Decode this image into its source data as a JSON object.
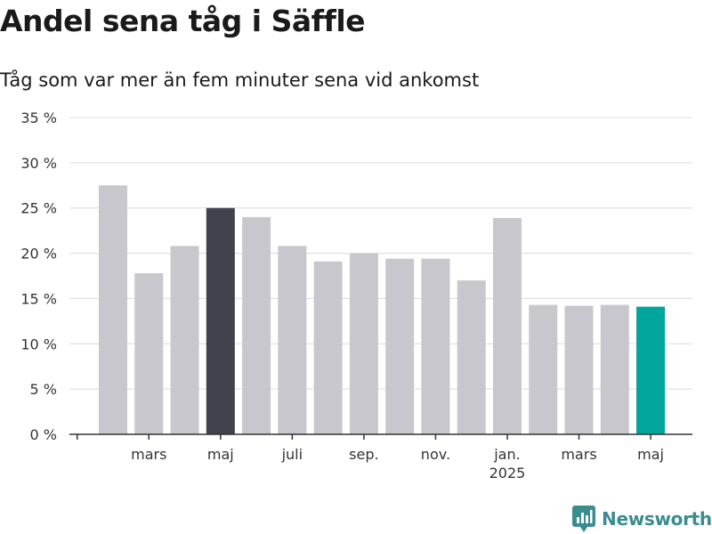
{
  "title": "Andel sena tåg i Säffle",
  "subtitle": "Tåg som var mer än fem minuter sena vid ankomst",
  "brand": {
    "name": "Newsworthy",
    "color": "#3a8c8f",
    "icon": "newsworthy-chart-logo-icon"
  },
  "colors": {
    "bar_default": "#c8c7ce",
    "bar_highlight_dark": "#42414e",
    "bar_highlight_accent": "#00a59b",
    "gridline": "#dcdcdc",
    "axis": "#333333"
  },
  "chart_data": {
    "type": "bar",
    "title": "Andel sena tåg i Säffle",
    "subtitle": "Tåg som var mer än fem minuter sena vid ankomst",
    "x": [
      "2024-02",
      "2024-03",
      "2024-04",
      "2024-05",
      "2024-06",
      "2024-07",
      "2024-08",
      "2024-09",
      "2024-10",
      "2024-11",
      "2024-12",
      "2025-01",
      "2025-02",
      "2025-03",
      "2025-04",
      "2025-05"
    ],
    "values": [
      27.5,
      17.8,
      20.8,
      25.0,
      24.0,
      20.8,
      19.1,
      20.0,
      19.4,
      19.4,
      17.0,
      23.9,
      14.3,
      14.2,
      14.3,
      14.1
    ],
    "highlight": {
      "2024-05": "bar_highlight_dark",
      "2025-05": "bar_highlight_accent"
    },
    "ylim": [
      0,
      35
    ],
    "y_ticks": [
      {
        "value": 0,
        "label": "0 %"
      },
      {
        "value": 5,
        "label": "5 %"
      },
      {
        "value": 10,
        "label": "10 %"
      },
      {
        "value": 15,
        "label": "15 %"
      },
      {
        "value": 20,
        "label": "20 %"
      },
      {
        "value": 25,
        "label": "25 %"
      },
      {
        "value": 30,
        "label": "30 %"
      },
      {
        "value": 35,
        "label": "35 %"
      }
    ],
    "x_tick_labels": [
      {
        "at": "2024-03",
        "label": "mars"
      },
      {
        "at": "2024-05",
        "label": "maj"
      },
      {
        "at": "2024-07",
        "label": "juli"
      },
      {
        "at": "2024-09",
        "label": "sep."
      },
      {
        "at": "2024-11",
        "label": "nov."
      },
      {
        "at": "2025-01",
        "label": "jan.",
        "sublabel": "2025"
      },
      {
        "at": "2025-03",
        "label": "mars"
      },
      {
        "at": "2025-05",
        "label": "maj"
      }
    ],
    "grid": true,
    "legend": "none"
  }
}
